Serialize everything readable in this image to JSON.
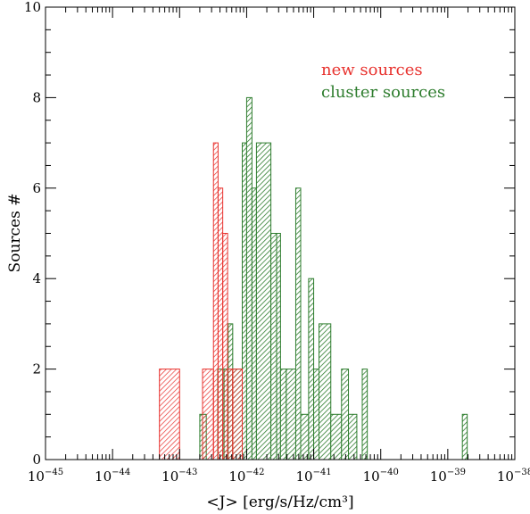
{
  "chart_data": {
    "type": "histogram",
    "xlabel": "<J> [erg/s/Hz/cm³]",
    "ylabel": "Sources #",
    "xscale": "log",
    "xlim": [
      1e-45,
      1e-38
    ],
    "ylim": [
      0,
      10
    ],
    "grid": false,
    "legend_position": "top-right",
    "x_tick_labels": [
      {
        "value": 1e-45,
        "base": "10",
        "exponent": "−45"
      },
      {
        "value": 1e-44,
        "base": "10",
        "exponent": "−44"
      },
      {
        "value": 1e-43,
        "base": "10",
        "exponent": "−43"
      },
      {
        "value": 1e-42,
        "base": "10",
        "exponent": "−42"
      },
      {
        "value": 1e-41,
        "base": "10",
        "exponent": "−41"
      },
      {
        "value": 1e-40,
        "base": "10",
        "exponent": "−40"
      },
      {
        "value": 1e-39,
        "base": "10",
        "exponent": "−39"
      },
      {
        "value": 1e-38,
        "base": "10",
        "exponent": "−38"
      }
    ],
    "y_ticks": [
      0,
      2,
      4,
      6,
      8,
      10
    ],
    "series": [
      {
        "name": "cluster sources",
        "color": "#2e7d2e",
        "bins": [
          {
            "x0": 2e-43,
            "x1": 2.5e-43,
            "count": 1
          },
          {
            "x0": 3.7e-43,
            "x1": 4.6e-43,
            "count": 2
          },
          {
            "x0": 4.6e-43,
            "x1": 5.3e-43,
            "count": 2
          },
          {
            "x0": 5.3e-43,
            "x1": 6.2e-43,
            "count": 3
          },
          {
            "x0": 6.2e-43,
            "x1": 8.6e-43,
            "count": 2
          },
          {
            "x0": 8.6e-43,
            "x1": 1e-42,
            "count": 7
          },
          {
            "x0": 1e-42,
            "x1": 1.2e-42,
            "count": 8
          },
          {
            "x0": 1.2e-42,
            "x1": 1.4e-42,
            "count": 6
          },
          {
            "x0": 1.4e-42,
            "x1": 2.3e-42,
            "count": 7
          },
          {
            "x0": 2.3e-42,
            "x1": 2.8e-42,
            "count": 5
          },
          {
            "x0": 2.8e-42,
            "x1": 3.2e-42,
            "count": 5
          },
          {
            "x0": 3.2e-42,
            "x1": 3.9e-42,
            "count": 2
          },
          {
            "x0": 3.9e-42,
            "x1": 5.4e-42,
            "count": 2
          },
          {
            "x0": 5.4e-42,
            "x1": 6.4e-42,
            "count": 6
          },
          {
            "x0": 6.4e-42,
            "x1": 8.4e-42,
            "count": 1
          },
          {
            "x0": 8.4e-42,
            "x1": 1e-41,
            "count": 4
          },
          {
            "x0": 1e-41,
            "x1": 1.2e-41,
            "count": 2
          },
          {
            "x0": 1.2e-41,
            "x1": 1.8e-41,
            "count": 3
          },
          {
            "x0": 1.8e-41,
            "x1": 2.6e-41,
            "count": 1
          },
          {
            "x0": 2.6e-41,
            "x1": 3.3e-41,
            "count": 2
          },
          {
            "x0": 3.3e-41,
            "x1": 4.4e-41,
            "count": 1
          },
          {
            "x0": 5.3e-41,
            "x1": 6.3e-41,
            "count": 2
          },
          {
            "x0": 1.65e-39,
            "x1": 1.95e-39,
            "count": 1
          }
        ]
      },
      {
        "name": "new sources",
        "color": "#e8322e",
        "bins": [
          {
            "x0": 5e-44,
            "x1": 1e-43,
            "count": 2
          },
          {
            "x0": 2.2e-43,
            "x1": 3.2e-43,
            "count": 2
          },
          {
            "x0": 3.2e-43,
            "x1": 3.75e-43,
            "count": 7
          },
          {
            "x0": 3.75e-43,
            "x1": 4.4e-43,
            "count": 6
          },
          {
            "x0": 4.4e-43,
            "x1": 5.2e-43,
            "count": 5
          },
          {
            "x0": 5.2e-43,
            "x1": 6.2e-43,
            "count": 2
          },
          {
            "x0": 6.2e-43,
            "x1": 8.6e-43,
            "count": 2
          }
        ]
      }
    ]
  }
}
